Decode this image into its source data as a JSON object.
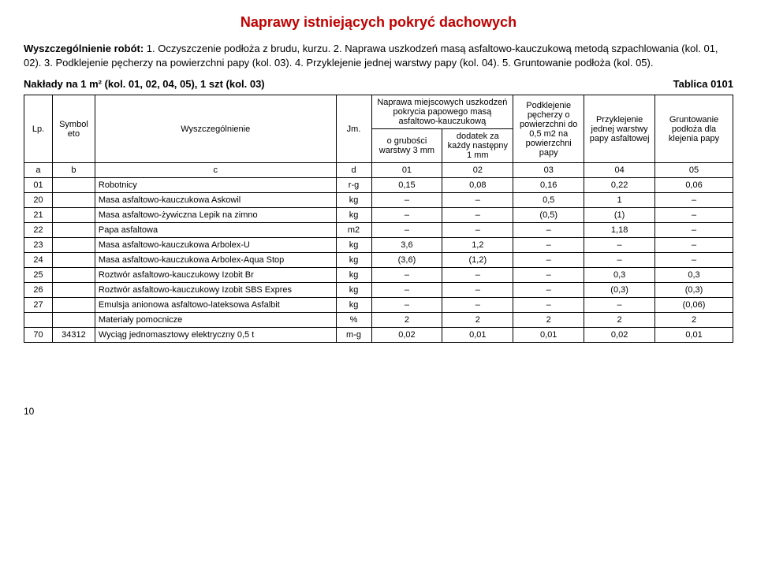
{
  "title": "Naprawy istniejących pokryć dachowych",
  "description": {
    "lead": "Wyszczególnienie robót:",
    "body": " 1. Oczyszczenie podłoża z brudu, kurzu. 2. Naprawa uszkodzeń masą asfaltowo-kauczukową metodą szpachlowania (kol. 01, 02). 3. Podklejenie pęcherzy na powierzchni papy (kol. 03). 4. Przyklejenie jednej warstwy papy (kol. 04). 5. Gruntowanie podłoża (kol. 05)."
  },
  "naklady": "Nakłady na 1 m² (kol. 01, 02, 04, 05), 1 szt (kol. 03)",
  "tablica": "Tablica 0101",
  "header": {
    "lp": "Lp.",
    "symbol": "Symbol eto",
    "wysz": "Wyszczególnienie",
    "jm": "Jm.",
    "naprawa": "Naprawa miejscowych uszkodzeń pokrycia papowego masą asfaltowo-kauczukową",
    "grubosc": "o grubości warstwy 3 mm",
    "dodatek": "dodatek za każdy następny 1 mm",
    "podklejenie": "Podklejenie pęcherzy o powierzchni do 0,5 m2 na powierzchni papy",
    "przyklejenie": "Przyklejenie jednej warstwy papy asfaltowej",
    "gruntowanie": "Gruntowanie podłoża dla klejenia papy",
    "a": "a",
    "b": "b",
    "c": "c",
    "d": "d",
    "c01": "01",
    "c02": "02",
    "c03": "03",
    "c04": "04",
    "c05": "05"
  },
  "rows": [
    {
      "lp": "01",
      "sym": "",
      "name": "Robotnicy",
      "jm": "r-g",
      "v": [
        "0,15",
        "0,08",
        "0,16",
        "0,22",
        "0,06"
      ]
    },
    {
      "lp": "20",
      "sym": "",
      "name": "Masa asfaltowo-kauczukowa Askowil",
      "jm": "kg",
      "v": [
        "–",
        "–",
        "0,5",
        "1",
        "–"
      ]
    },
    {
      "lp": "21",
      "sym": "",
      "name": "Masa asfaltowo-żywiczna Lepik na zimno",
      "jm": "kg",
      "v": [
        "–",
        "–",
        "(0,5)",
        "(1)",
        "–"
      ]
    },
    {
      "lp": "22",
      "sym": "",
      "name": "Papa asfaltowa",
      "jm": "m2",
      "v": [
        "–",
        "–",
        "–",
        "1,18",
        "–"
      ]
    },
    {
      "lp": "23",
      "sym": "",
      "name": "Masa asfaltowo-kauczukowa Arbolex-U",
      "jm": "kg",
      "v": [
        "3,6",
        "1,2",
        "–",
        "–",
        "–"
      ]
    },
    {
      "lp": "24",
      "sym": "",
      "name": "Masa asfaltowo-kauczukowa Arbolex-Aqua Stop",
      "jm": "kg",
      "v": [
        "(3,6)",
        "(1,2)",
        "–",
        "–",
        "–"
      ]
    },
    {
      "lp": "25",
      "sym": "",
      "name": "Roztwór asfaltowo-kauczukowy Izobit Br",
      "jm": "kg",
      "v": [
        "–",
        "–",
        "–",
        "0,3",
        "0,3"
      ]
    },
    {
      "lp": "26",
      "sym": "",
      "name": "Roztwór asfaltowo-kauczukowy Izobit SBS Expres",
      "jm": "kg",
      "v": [
        "–",
        "–",
        "–",
        "(0,3)",
        "(0,3)"
      ]
    },
    {
      "lp": "27",
      "sym": "",
      "name": "Emulsja anionowa asfaltowo-lateksowa Asfalbit",
      "jm": "kg",
      "v": [
        "–",
        "–",
        "–",
        "–",
        "(0,06)"
      ]
    },
    {
      "lp": "",
      "sym": "",
      "name": "Materiały pomocnicze",
      "jm": "%",
      "v": [
        "2",
        "2",
        "2",
        "2",
        "2"
      ]
    },
    {
      "lp": "70",
      "sym": "34312",
      "name": "Wyciąg jednomasztowy elektryczny 0,5 t",
      "jm": "m-g",
      "v": [
        "0,02",
        "0,01",
        "0,01",
        "0,02",
        "0,01"
      ]
    }
  ],
  "pageNum": "10",
  "colWidths": {
    "lp": "4%",
    "sym": "6%",
    "name": "34%",
    "jm": "5%",
    "v0": "10%",
    "v1": "10%",
    "v2": "10%",
    "v3": "10%",
    "v4": "11%"
  }
}
